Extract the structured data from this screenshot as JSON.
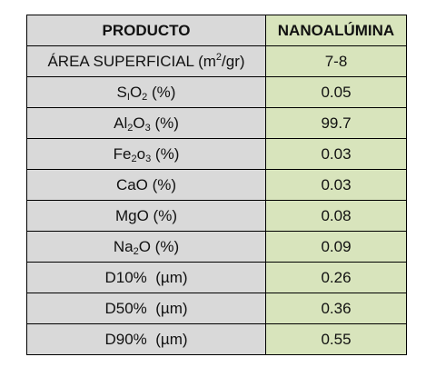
{
  "colors": {
    "label_column_bg": "#d9d9d9",
    "value_column_bg": "#d8e4bc",
    "border": "#000000"
  },
  "table": {
    "headers": {
      "product": "PRODUCTO",
      "value": "NANOALÚMINA"
    },
    "rows": [
      {
        "label_parts": [
          "ÁREA SUPERFICIAL (m",
          "2",
          "/gr)"
        ],
        "value": "7-8"
      },
      {
        "label_parts": [
          "S",
          "I",
          "O",
          "2",
          " (%)"
        ],
        "value": "0.05"
      },
      {
        "label_parts": [
          "Al",
          "2",
          "O",
          "3",
          " (%)"
        ],
        "value": "99.7"
      },
      {
        "label_parts": [
          "Fe",
          "2",
          "o",
          "3",
          " (%)"
        ],
        "value": "0.03"
      },
      {
        "label": "CaO (%)",
        "value": "0.03"
      },
      {
        "label": "MgO (%)",
        "value": "0.08"
      },
      {
        "label_parts": [
          "Na",
          "2",
          "O (%)"
        ],
        "value": "0.09"
      },
      {
        "label": "D10%  (µm)",
        "value": "0.26"
      },
      {
        "label": "D50%  (µm)",
        "value": "0.36"
      },
      {
        "label": "D90%  (µm)",
        "value": "0.55"
      }
    ]
  }
}
